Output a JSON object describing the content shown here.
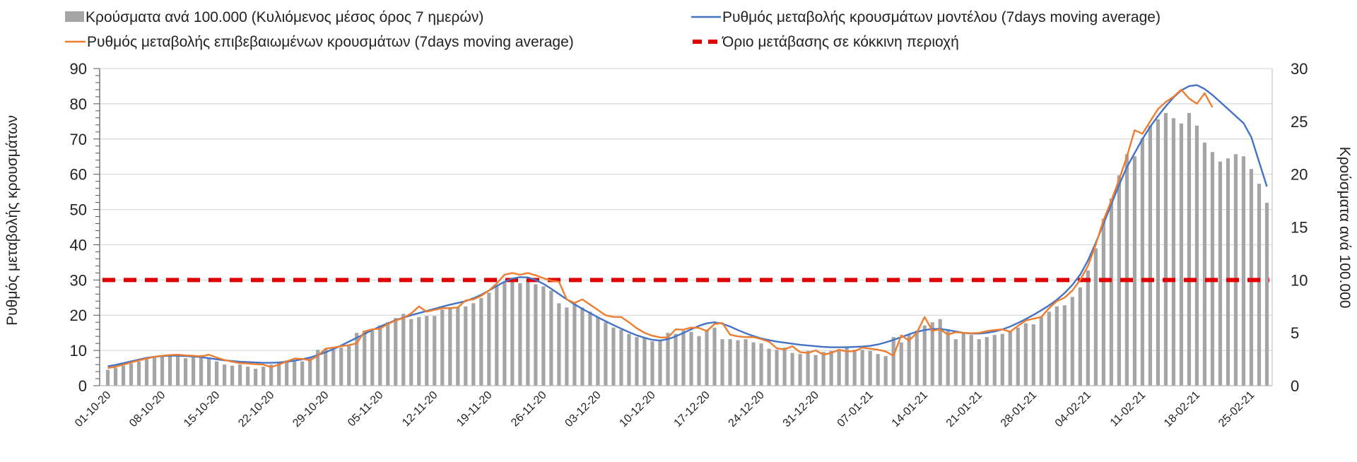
{
  "chart_data": {
    "type": "bar+line",
    "title": "",
    "xlabel": "",
    "ylabel": "Ρυθμός μεταβολής κρουσμάτων",
    "ylabel_right": "Κρούσματα ανά 100.000",
    "ylim": [
      0,
      90
    ],
    "ylim_right": [
      0,
      30
    ],
    "yticks": [
      0,
      10,
      20,
      30,
      40,
      50,
      60,
      70,
      80,
      90
    ],
    "yticks_right": [
      0,
      5,
      10,
      15,
      20,
      25,
      30
    ],
    "grid": true,
    "legend_position": "top",
    "start_date": "01-10-20",
    "x_tick_labels": [
      "01-10-20",
      "08-10-20",
      "15-10-20",
      "22-10-20",
      "29-10-20",
      "05-11-20",
      "12-11-20",
      "19-11-20",
      "26-11-20",
      "03-12-20",
      "10-12-20",
      "17-12-20",
      "24-12-20",
      "31-12-20",
      "07-01-21",
      "14-01-21",
      "21-01-21",
      "28-01-21",
      "04-02-21",
      "11-02-21",
      "18-02-21",
      "25-02-21"
    ],
    "x_tick_every_days": 7,
    "series": [
      {
        "name": "Κρούσματα ανά 100.000 (Κυλιόμενος μέσος όρος 7 ημερών)",
        "kind": "bar",
        "axis": "right",
        "color": "#A5A5A5",
        "values": [
          1.5,
          1.7,
          1.9,
          2.1,
          2.3,
          2.5,
          2.7,
          2.8,
          2.9,
          2.9,
          2.6,
          2.8,
          2.9,
          2.6,
          2.3,
          2.0,
          1.9,
          2.0,
          1.8,
          1.6,
          1.8,
          2.0,
          2.2,
          2.4,
          2.3,
          2.3,
          2.7,
          3.4,
          3.5,
          3.4,
          3.6,
          3.8,
          5.0,
          5.2,
          5.2,
          5.7,
          6.0,
          6.4,
          6.8,
          6.3,
          6.5,
          6.6,
          6.6,
          7.2,
          7.4,
          7.4,
          7.5,
          7.8,
          8.3,
          8.8,
          9.5,
          9.8,
          10.0,
          9.7,
          10.0,
          9.6,
          9.4,
          9.0,
          7.8,
          7.4,
          7.8,
          7.4,
          7.0,
          6.5,
          6.0,
          5.5,
          5.3,
          4.9,
          4.6,
          4.5,
          4.2,
          4.3,
          5.0,
          4.9,
          5.2,
          5.1,
          4.7,
          5.3,
          5.5,
          4.4,
          4.4,
          4.3,
          4.4,
          4.1,
          4.0,
          3.5,
          3.4,
          3.6,
          3.1,
          3.0,
          3.3,
          2.9,
          3.2,
          3.3,
          3.3,
          3.7,
          3.4,
          3.4,
          3.3,
          3.0,
          2.8,
          4.6,
          4.1,
          4.8,
          5.2,
          5.7,
          6.0,
          6.3,
          5.2,
          4.4,
          5.0,
          4.8,
          4.4,
          4.6,
          4.8,
          4.9,
          5.2,
          5.5,
          5.9,
          5.8,
          6.5,
          7.0,
          7.5,
          7.6,
          8.4,
          9.3,
          10.9,
          13.0,
          15.8,
          17.7,
          19.9,
          21.9,
          21.7,
          23.4,
          24.6,
          25.2,
          25.8,
          25.3,
          24.8,
          25.8,
          24.6,
          23.0,
          22.1,
          21.2,
          21.5,
          21.9,
          21.7,
          20.5,
          19.1,
          17.3
        ]
      },
      {
        "name": "Ρυθμός μεταβολής κρουσμάτων μοντέλου (7days moving average)",
        "kind": "line",
        "axis": "left",
        "color": "#4472C4",
        "values": [
          5.5,
          5.9,
          6.4,
          6.9,
          7.4,
          7.9,
          8.2,
          8.4,
          8.5,
          8.5,
          8.4,
          8.3,
          8.1,
          7.8,
          7.5,
          7.2,
          7.0,
          6.8,
          6.7,
          6.6,
          6.5,
          6.5,
          6.6,
          6.8,
          7.1,
          7.5,
          8.0,
          8.7,
          9.5,
          10.4,
          11.4,
          12.5,
          13.6,
          14.7,
          15.8,
          16.8,
          17.7,
          18.6,
          19.3,
          20.0,
          20.6,
          21.2,
          21.8,
          22.4,
          23.0,
          23.5,
          24.0,
          24.8,
          25.8,
          27.0,
          28.3,
          29.5,
          30.4,
          30.8,
          30.7,
          30.0,
          28.9,
          27.5,
          26.0,
          24.5,
          23.1,
          21.8,
          20.6,
          19.4,
          18.3,
          17.2,
          16.2,
          15.2,
          14.3,
          13.6,
          13.0,
          12.8,
          13.2,
          14.0,
          15.0,
          16.0,
          17.0,
          17.7,
          18.0,
          17.6,
          16.8,
          15.8,
          14.9,
          14.1,
          13.4,
          12.9,
          12.5,
          12.2,
          11.9,
          11.6,
          11.4,
          11.2,
          11.0,
          10.9,
          10.9,
          10.9,
          11.0,
          11.1,
          11.3,
          11.7,
          12.3,
          13.0,
          13.8,
          14.6,
          15.3,
          15.8,
          16.1,
          16.1,
          15.8,
          15.4,
          15.0,
          14.8,
          14.8,
          15.0,
          15.4,
          16.0,
          16.8,
          17.8,
          18.9,
          20.1,
          21.4,
          22.8,
          24.4,
          26.3,
          28.6,
          31.5,
          35.5,
          40.5,
          46.0,
          51.5,
          57.0,
          62.0,
          66.0,
          70.0,
          73.5,
          76.5,
          79.3,
          81.8,
          83.8,
          85.0,
          85.3,
          84.2,
          82.5,
          80.5,
          78.5,
          76.5,
          74.5,
          70.5,
          63.5,
          56.5
        ]
      },
      {
        "name": "Ρυθμός μεταβολής επιβεβαιωμένων κρουσμάτων (7days moving average)",
        "kind": "line",
        "axis": "left",
        "color": "#ED7D31",
        "values": [
          5.0,
          5.4,
          6.0,
          6.6,
          7.2,
          7.7,
          8.2,
          8.5,
          8.7,
          8.8,
          8.6,
          8.5,
          8.3,
          8.8,
          8.0,
          7.3,
          6.8,
          6.4,
          6.3,
          6.1,
          6.0,
          5.3,
          6.0,
          6.9,
          7.7,
          7.6,
          7.2,
          8.5,
          10.5,
          10.8,
          11.2,
          11.5,
          12.0,
          15.4,
          16.0,
          16.2,
          17.5,
          18.5,
          19.2,
          20.5,
          22.5,
          21.0,
          21.5,
          22.0,
          22.0,
          22.2,
          24.2,
          24.5,
          25.5,
          27.0,
          29.0,
          31.5,
          32.0,
          31.5,
          32.0,
          31.3,
          30.5,
          29.8,
          29.5,
          24.5,
          23.5,
          24.5,
          23.0,
          21.5,
          20.0,
          19.5,
          19.5,
          18.0,
          16.3,
          15.0,
          14.2,
          13.7,
          13.7,
          16.0,
          15.9,
          16.5,
          16.4,
          15.5,
          17.5,
          17.8,
          14.5,
          14.0,
          13.8,
          13.8,
          13.2,
          12.5,
          10.6,
          10.3,
          11.2,
          9.5,
          9.3,
          10.0,
          8.8,
          9.3,
          10.2,
          9.7,
          9.8,
          10.8,
          10.5,
          10.2,
          9.7,
          8.5,
          14.3,
          12.8,
          15.0,
          19.5,
          15.6,
          16.0,
          14.5,
          15.2,
          15.0,
          14.9,
          15.0,
          15.5,
          15.8,
          16.0,
          15.3,
          17.0,
          18.5,
          19.0,
          19.5,
          22.0,
          24.0,
          25.0,
          27.0,
          30.0,
          34.0,
          40.0,
          47.0,
          52.5,
          58.5,
          65.0,
          72.5,
          71.5,
          75.0,
          78.5,
          80.5,
          82.0,
          84.0,
          81.5,
          80.0,
          83.0,
          79.0
        ]
      },
      {
        "name": "Όριο μετάβασης σε κόκκινη περιοχή",
        "kind": "hline",
        "axis": "left",
        "color": "#E00000",
        "value": 30
      }
    ]
  }
}
